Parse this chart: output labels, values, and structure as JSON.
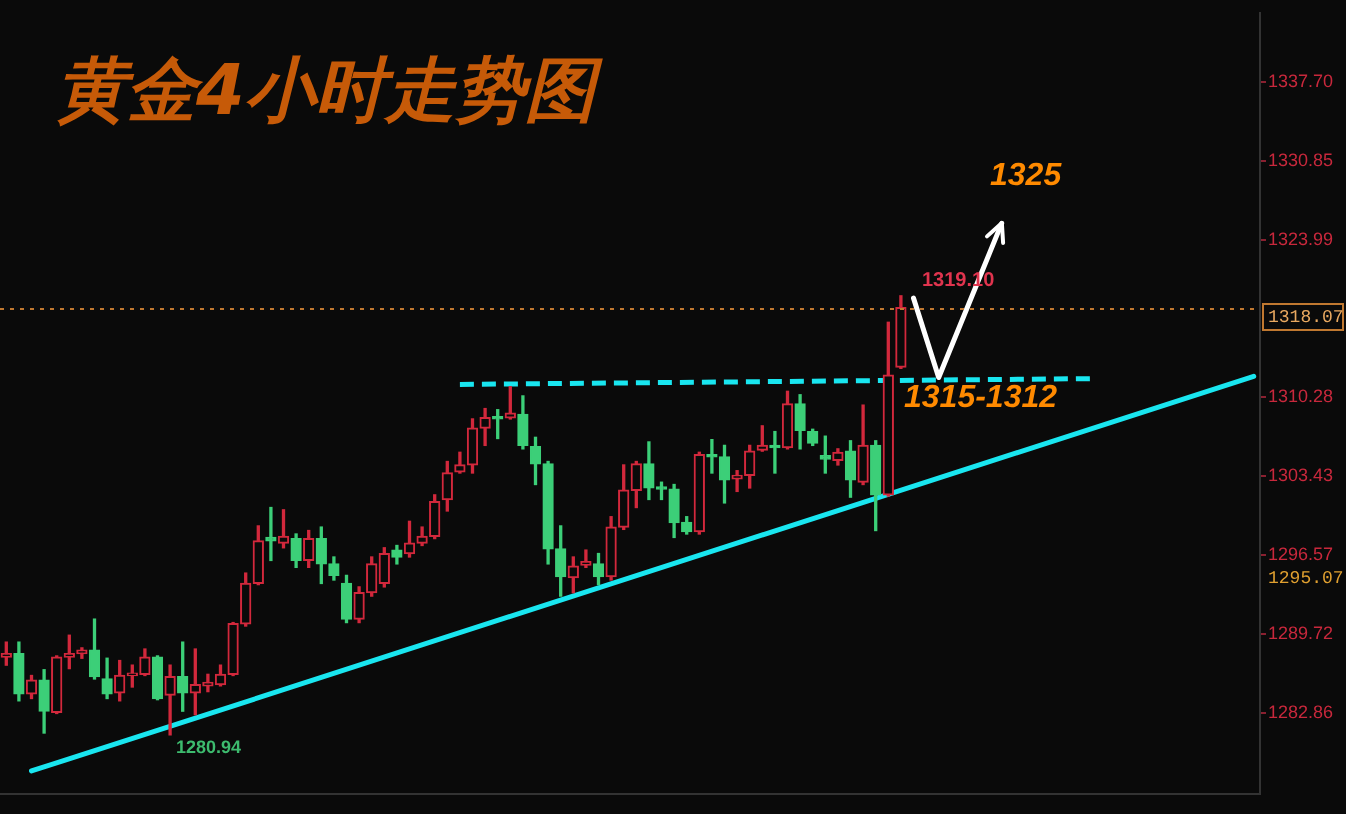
{
  "chart_data": {
    "type": "candlestick",
    "title": "黄金4小时走势图",
    "categories": [
      null,
      null,
      null,
      null,
      null,
      null,
      null,
      null,
      null,
      null,
      null,
      null,
      null,
      null,
      null,
      null,
      null,
      null,
      null,
      null,
      null,
      null,
      null,
      null,
      null,
      null,
      null,
      null,
      null,
      null,
      null,
      null,
      null,
      null,
      null,
      null,
      null,
      null,
      null,
      null,
      null,
      null,
      null,
      null,
      null,
      null,
      null,
      null,
      null,
      null,
      null,
      null,
      null,
      null,
      null,
      null,
      null,
      null,
      null,
      null,
      null,
      null,
      null,
      null,
      null,
      null,
      null,
      null,
      null,
      null,
      null,
      null,
      null,
      null,
      null,
      null,
      null,
      null,
      null,
      null,
      null,
      null,
      null,
      null,
      null,
      null,
      null,
      null,
      null,
      null,
      null,
      null,
      null,
      null,
      null,
      null,
      null,
      null,
      null,
      null
    ],
    "ohlc": [
      [
        1287.7,
        1289.0,
        1287.0,
        1288.0
      ],
      [
        1288.0,
        1289.0,
        1283.9,
        1284.5
      ],
      [
        1284.5,
        1286.1,
        1284.1,
        1285.7
      ],
      [
        1285.7,
        1286.6,
        1281.1,
        1283.0
      ],
      [
        1282.9,
        1287.8,
        1282.8,
        1287.7
      ],
      [
        1287.7,
        1289.6,
        1286.7,
        1288.0
      ],
      [
        1288.0,
        1288.5,
        1287.6,
        1288.3
      ],
      [
        1288.3,
        1291.0,
        1285.8,
        1286.0
      ],
      [
        1285.8,
        1287.6,
        1284.1,
        1284.5
      ],
      [
        1284.6,
        1287.4,
        1283.9,
        1286.1
      ],
      [
        1286.1,
        1287.0,
        1285.1,
        1286.3
      ],
      [
        1286.2,
        1288.4,
        1286.1,
        1287.7
      ],
      [
        1287.7,
        1287.8,
        1284.0,
        1284.1
      ],
      [
        1284.4,
        1287.0,
        1280.94,
        1286.0
      ],
      [
        1286.0,
        1289.0,
        1283.0,
        1284.6
      ],
      [
        1284.6,
        1288.4,
        1282.7,
        1285.3
      ],
      [
        1285.2,
        1286.2,
        1284.7,
        1285.5
      ],
      [
        1285.3,
        1287.0,
        1285.2,
        1286.2
      ],
      [
        1286.2,
        1290.7,
        1286.1,
        1290.6
      ],
      [
        1290.6,
        1295.0,
        1290.4,
        1294.1
      ],
      [
        1294.1,
        1299.1,
        1294.0,
        1297.8
      ],
      [
        1298.1,
        1300.7,
        1296.1,
        1297.8
      ],
      [
        1297.6,
        1300.5,
        1297.2,
        1298.2
      ],
      [
        1298.0,
        1298.4,
        1295.5,
        1296.1
      ],
      [
        1296.1,
        1298.7,
        1295.5,
        1298.0
      ],
      [
        1298.0,
        1299.0,
        1294.1,
        1295.8
      ],
      [
        1295.8,
        1296.4,
        1294.4,
        1294.8
      ],
      [
        1294.1,
        1294.8,
        1290.7,
        1291.0
      ],
      [
        1291.0,
        1293.8,
        1290.7,
        1293.3
      ],
      [
        1293.3,
        1296.4,
        1293.0,
        1295.8
      ],
      [
        1294.1,
        1297.2,
        1293.8,
        1296.7
      ],
      [
        1297.0,
        1297.4,
        1295.8,
        1296.4
      ],
      [
        1296.7,
        1299.5,
        1296.4,
        1297.6
      ],
      [
        1297.6,
        1299.0,
        1297.4,
        1298.2
      ],
      [
        1298.2,
        1301.8,
        1298.0,
        1301.2
      ],
      [
        1301.4,
        1304.7,
        1300.4,
        1303.7
      ],
      [
        1303.8,
        1305.5,
        1303.7,
        1304.4
      ],
      [
        1304.4,
        1308.4,
        1303.7,
        1307.6
      ],
      [
        1307.6,
        1309.3,
        1306.1,
        1308.5
      ],
      [
        1308.6,
        1309.2,
        1306.7,
        1308.4
      ],
      [
        1308.5,
        1311.2,
        1308.4,
        1308.9
      ],
      [
        1308.8,
        1310.4,
        1305.8,
        1306.1
      ],
      [
        1306.0,
        1306.8,
        1302.7,
        1304.5
      ],
      [
        1304.5,
        1304.7,
        1295.8,
        1297.1
      ],
      [
        1297.1,
        1299.1,
        1293.0,
        1294.7
      ],
      [
        1294.6,
        1296.4,
        1293.3,
        1295.6
      ],
      [
        1295.7,
        1297.0,
        1295.5,
        1296.0
      ],
      [
        1295.8,
        1296.7,
        1294.0,
        1294.7
      ],
      [
        1294.7,
        1299.9,
        1294.4,
        1299.0
      ],
      [
        1299.0,
        1304.4,
        1298.8,
        1302.2
      ],
      [
        1302.2,
        1304.7,
        1300.7,
        1304.5
      ],
      [
        1304.5,
        1306.4,
        1301.4,
        1302.4
      ],
      [
        1302.5,
        1302.9,
        1301.4,
        1302.3
      ],
      [
        1302.3,
        1302.7,
        1298.1,
        1299.4
      ],
      [
        1299.4,
        1299.9,
        1298.4,
        1298.6
      ],
      [
        1298.6,
        1305.5,
        1298.4,
        1305.3
      ],
      [
        1305.3,
        1306.6,
        1303.7,
        1305.1
      ],
      [
        1305.1,
        1306.1,
        1301.1,
        1303.1
      ],
      [
        1303.2,
        1303.9,
        1302.1,
        1303.5
      ],
      [
        1303.5,
        1306.1,
        1302.4,
        1305.6
      ],
      [
        1305.7,
        1307.8,
        1305.6,
        1306.1
      ],
      [
        1306.1,
        1307.3,
        1303.7,
        1305.9
      ],
      [
        1305.9,
        1310.8,
        1305.8,
        1309.7
      ],
      [
        1309.7,
        1310.5,
        1305.8,
        1307.4
      ],
      [
        1307.3,
        1307.5,
        1306.1,
        1306.3
      ],
      [
        1305.2,
        1306.9,
        1303.7,
        1304.9
      ],
      [
        1304.8,
        1305.8,
        1304.4,
        1305.5
      ],
      [
        1305.6,
        1306.5,
        1301.6,
        1303.1
      ],
      [
        1302.9,
        1309.6,
        1302.7,
        1306.1
      ],
      [
        1306.1,
        1306.5,
        1298.7,
        1301.8
      ],
      [
        1301.8,
        1316.8,
        1301.7,
        1312.2
      ],
      [
        1312.9,
        1319.1,
        1312.8,
        1318.07
      ],
      null,
      null,
      null,
      null,
      null,
      null,
      null,
      null,
      null,
      null,
      null,
      null,
      null,
      null,
      null,
      null,
      null,
      null,
      null,
      null,
      null,
      null,
      null,
      null,
      null,
      null,
      null,
      null
    ],
    "colors": [
      "#d2283c",
      "#3ccf78",
      "#d2283c",
      "#3ccf78",
      "#d2283c",
      "#d2283c",
      "#d2283c",
      "#3ccf78",
      "#3ccf78",
      "#d2283c",
      "#d2283c",
      "#d2283c",
      "#3ccf78",
      "#d2283c",
      "#3ccf78",
      "#d2283c",
      "#d2283c",
      "#d2283c",
      "#d2283c",
      "#d2283c",
      "#d2283c",
      "#3ccf78",
      "#d2283c",
      "#3ccf78",
      "#d2283c",
      "#3ccf78",
      "#3ccf78",
      "#3ccf78",
      "#d2283c",
      "#d2283c",
      "#d2283c",
      "#3ccf78",
      "#d2283c",
      "#d2283c",
      "#d2283c",
      "#d2283c",
      "#d2283c",
      "#d2283c",
      "#d2283c",
      "#3ccf78",
      "#d2283c",
      "#3ccf78",
      "#3ccf78",
      "#3ccf78",
      "#3ccf78",
      "#d2283c",
      "#d2283c",
      "#3ccf78",
      "#d2283c",
      "#d2283c",
      "#d2283c",
      "#3ccf78",
      "#3ccf78",
      "#3ccf78",
      "#3ccf78",
      "#d2283c",
      "#3ccf78",
      "#3ccf78",
      "#d2283c",
      "#d2283c",
      "#d2283c",
      "#3ccf78",
      "#d2283c",
      "#3ccf78",
      "#3ccf78",
      "#3ccf78",
      "#d2283c",
      "#3ccf78",
      "#d2283c",
      "#3ccf78",
      "#d2283c",
      "#d2283c",
      null,
      null,
      null,
      null,
      null,
      null,
      null,
      null,
      null,
      null,
      null,
      null,
      null,
      null,
      null,
      null,
      null,
      null,
      null,
      null,
      null,
      null,
      null,
      null,
      null,
      null,
      null,
      null
    ],
    "series": [
      {
        "type": "line",
        "color": "#19e6f0",
        "values": [
          null,
          null,
          1277.8,
          null,
          null,
          null,
          null,
          null,
          null,
          null,
          null,
          null,
          null,
          null,
          null,
          null,
          null,
          null,
          null,
          null,
          null,
          null,
          null,
          null,
          null,
          null,
          null,
          null,
          null,
          null,
          null,
          null,
          null,
          null,
          null,
          null,
          null,
          null,
          null,
          null,
          null,
          null,
          null,
          null,
          null,
          null,
          null,
          null,
          null,
          null,
          null,
          null,
          null,
          null,
          null,
          null,
          null,
          null,
          null,
          null,
          null,
          null,
          null,
          null,
          null,
          null,
          null,
          null,
          null,
          null,
          null,
          null,
          null,
          null,
          null,
          null,
          null,
          null,
          null,
          null,
          null,
          null,
          null,
          null,
          null,
          null,
          null,
          null,
          null,
          null,
          null,
          null,
          null,
          null,
          null,
          null,
          null,
          null,
          null,
          1312.1
        ]
      },
      {
        "type": "line",
        "color": "#19e6f0",
        "line_style": "dashed",
        "values": [
          null,
          null,
          null,
          null,
          null,
          null,
          null,
          null,
          null,
          null,
          null,
          null,
          null,
          null,
          null,
          null,
          null,
          null,
          null,
          null,
          null,
          null,
          null,
          null,
          null,
          null,
          null,
          null,
          null,
          null,
          null,
          null,
          null,
          null,
          null,
          null,
          1311.4,
          null,
          null,
          null,
          null,
          null,
          null,
          null,
          null,
          null,
          null,
          null,
          null,
          null,
          null,
          null,
          null,
          null,
          null,
          null,
          null,
          null,
          null,
          null,
          null,
          null,
          null,
          null,
          null,
          null,
          null,
          null,
          null,
          null,
          null,
          null,
          null,
          null,
          null,
          null,
          null,
          null,
          null,
          null,
          null,
          null,
          null,
          null,
          null,
          null,
          1311.9,
          null,
          null,
          null,
          null,
          null,
          null,
          null,
          null,
          null,
          null,
          null,
          null,
          null
        ]
      },
      {
        "type": "line",
        "color": "#ffffff",
        "values": [
          null,
          null,
          null,
          null,
          null,
          null,
          null,
          null,
          null,
          null,
          null,
          null,
          null,
          null,
          null,
          null,
          null,
          null,
          null,
          null,
          null,
          null,
          null,
          null,
          null,
          null,
          null,
          null,
          null,
          null,
          null,
          null,
          null,
          null,
          null,
          null,
          null,
          null,
          null,
          null,
          null,
          null,
          null,
          null,
          null,
          null,
          null,
          null,
          null,
          null,
          null,
          null,
          null,
          null,
          null,
          null,
          null,
          null,
          null,
          null,
          null,
          null,
          null,
          null,
          null,
          null,
          null,
          null,
          null,
          null,
          null,
          null,
          1318.9,
          null,
          1312.0,
          null,
          null,
          null,
          null,
          1325.4,
          null,
          null,
          null,
          null,
          null,
          null,
          null,
          null,
          null,
          null,
          null,
          null,
          null,
          null,
          null,
          null,
          null,
          null,
          null,
          null
        ]
      }
    ],
    "ylim": [
      1275.8,
      1343.7
    ],
    "yticks": [
      1282.86,
      1289.72,
      1296.57,
      1303.43,
      1310.28,
      1323.99,
      1330.85,
      {
        "value": 1337.7,
        "label": "1337.70"
      }
    ],
    "tick_labels": "y",
    "ref_lines": [
      {
        "axis": "y",
        "value": 1318.07,
        "label": "1318.07",
        "color": "#c07830",
        "line_style": "dotted"
      }
    ],
    "annotations": [
      "1319.10",
      "1280.94",
      "1325",
      "1315-1312",
      "1295.07"
    ]
  }
}
